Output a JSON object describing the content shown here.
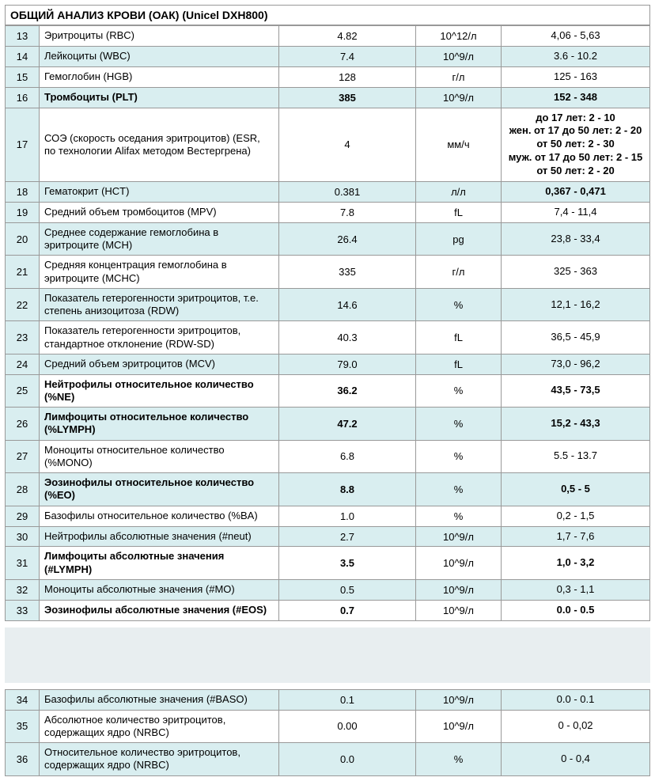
{
  "title": "ОБЩИЙ АНАЛИЗ КРОВИ (ОАК) (Unicel DXH800)",
  "colors": {
    "tint": "#d9eef0",
    "border": "#999999"
  },
  "rows1": [
    {
      "n": "13",
      "param": "Эритроциты (RBC)",
      "value": "4.82",
      "unit": "10^12/л",
      "ref": "4,06 - 5,63",
      "bold": false,
      "tint": false
    },
    {
      "n": "14",
      "param": "Лейкоциты (WBC)",
      "value": "7.4",
      "unit": "10^9/л",
      "ref": "3.6 - 10.2",
      "bold": false,
      "tint": true
    },
    {
      "n": "15",
      "param": "Гемоглобин (HGB)",
      "value": "128",
      "unit": "г/л",
      "ref": "125 - 163",
      "bold": false,
      "tint": false
    },
    {
      "n": "16",
      "param": "Тромбоциты (PLT)",
      "value": "385",
      "unit": "10^9/л",
      "ref": "152 - 348",
      "bold": true,
      "tint": true
    },
    {
      "n": "17",
      "param": "СОЭ (скорость оседания эритроцитов) (ESR, по технологии Alifax методом Вестергрена)",
      "value": "4",
      "unit": "мм/ч",
      "ref": "до 17 лет: 2 - 10\nжен. от 17 до 50 лет: 2 - 20\nот 50 лет: 2 - 30\nмуж. от 17 до 50 лет: 2 - 15\nот 50 лет: 2 - 20",
      "bold": false,
      "tint": false,
      "refBold": true
    },
    {
      "n": "18",
      "param": "Гематокрит (HCT)",
      "value": "0.381",
      "unit": "л/л",
      "ref": "0,367 - 0,471",
      "bold": false,
      "tint": true,
      "refBold": true
    },
    {
      "n": "19",
      "param": "Средний объем тромбоцитов (MPV)",
      "value": "7.8",
      "unit": "fL",
      "ref": "7,4 - 11,4",
      "bold": false,
      "tint": false
    },
    {
      "n": "20",
      "param": "Среднее содержание гемоглобина в эритроците (MCH)",
      "value": "26.4",
      "unit": "pg",
      "ref": "23,8 - 33,4",
      "bold": false,
      "tint": true
    },
    {
      "n": "21",
      "param": "Средняя концентрация гемоглобина в эритроците (MCHC)",
      "value": "335",
      "unit": "г/л",
      "ref": "325 - 363",
      "bold": false,
      "tint": false
    },
    {
      "n": "22",
      "param": "Показатель гетерогенности эритроцитов, т.е. степень анизоцитоза (RDW)",
      "value": "14.6",
      "unit": "%",
      "ref": "12,1 - 16,2",
      "bold": false,
      "tint": true
    },
    {
      "n": "23",
      "param": "Показатель гетерогенности эритроцитов, стандартное отклонение (RDW-SD)",
      "value": "40.3",
      "unit": "fL",
      "ref": "36,5 - 45,9",
      "bold": false,
      "tint": false
    },
    {
      "n": "24",
      "param": "Средний объем эритроцитов (MCV)",
      "value": "79.0",
      "unit": "fL",
      "ref": "73,0 - 96,2",
      "bold": false,
      "tint": true
    },
    {
      "n": "25",
      "param": "Нейтрофилы относительное количество (%NE)",
      "value": "36.2",
      "unit": "%",
      "ref": "43,5 - 73,5",
      "bold": true,
      "tint": false
    },
    {
      "n": "26",
      "param": "Лимфоциты относительное количество (%LYMPH)",
      "value": "47.2",
      "unit": "%",
      "ref": "15,2 - 43,3",
      "bold": true,
      "tint": true
    },
    {
      "n": "27",
      "param": "Моноциты относительное количество (%MONO)",
      "value": "6.8",
      "unit": "%",
      "ref": "5.5 - 13.7",
      "bold": false,
      "tint": false
    },
    {
      "n": "28",
      "param": "Эозинофилы относительное количество (%EO)",
      "value": "8.8",
      "unit": "%",
      "ref": "0,5 - 5",
      "bold": true,
      "tint": true
    },
    {
      "n": "29",
      "param": "Базофилы относительное количество (%BA)",
      "value": "1.0",
      "unit": "%",
      "ref": "0,2 - 1,5",
      "bold": false,
      "tint": false
    },
    {
      "n": "30",
      "param": "Нейтрофилы абсолютные значения (#neut)",
      "value": "2.7",
      "unit": "10^9/л",
      "ref": "1,7 - 7,6",
      "bold": false,
      "tint": true
    },
    {
      "n": "31",
      "param": "Лимфоциты абсолютные значения (#LYMPH)",
      "value": "3.5",
      "unit": "10^9/л",
      "ref": "1,0 - 3,2",
      "bold": true,
      "tint": false
    },
    {
      "n": "32",
      "param": "Моноциты абсолютные значения (#MO)",
      "value": "0.5",
      "unit": "10^9/л",
      "ref": "0,3 - 1,1",
      "bold": false,
      "tint": true
    },
    {
      "n": "33",
      "param": "Эозинофилы абсолютные значения (#EOS)",
      "value": "0.7",
      "unit": "10^9/л",
      "ref": "0.0 - 0.5",
      "bold": true,
      "tint": false
    }
  ],
  "rows2": [
    {
      "n": "34",
      "param": "Базофилы абсолютные значения (#BASO)",
      "value": "0.1",
      "unit": "10^9/л",
      "ref": "0.0 - 0.1",
      "bold": false,
      "tint": true
    },
    {
      "n": "35",
      "param": "Абсолютное количество эритроцитов, содержащих ядро (NRBC)",
      "value": "0.00",
      "unit": "10^9/л",
      "ref": "0 - 0,02",
      "bold": false,
      "tint": false
    },
    {
      "n": "36",
      "param": "Относительное количество эритроцитов, содержащих ядро (NRBC)",
      "value": "0.0",
      "unit": "%",
      "ref": "0 - 0,4",
      "bold": false,
      "tint": true
    }
  ]
}
